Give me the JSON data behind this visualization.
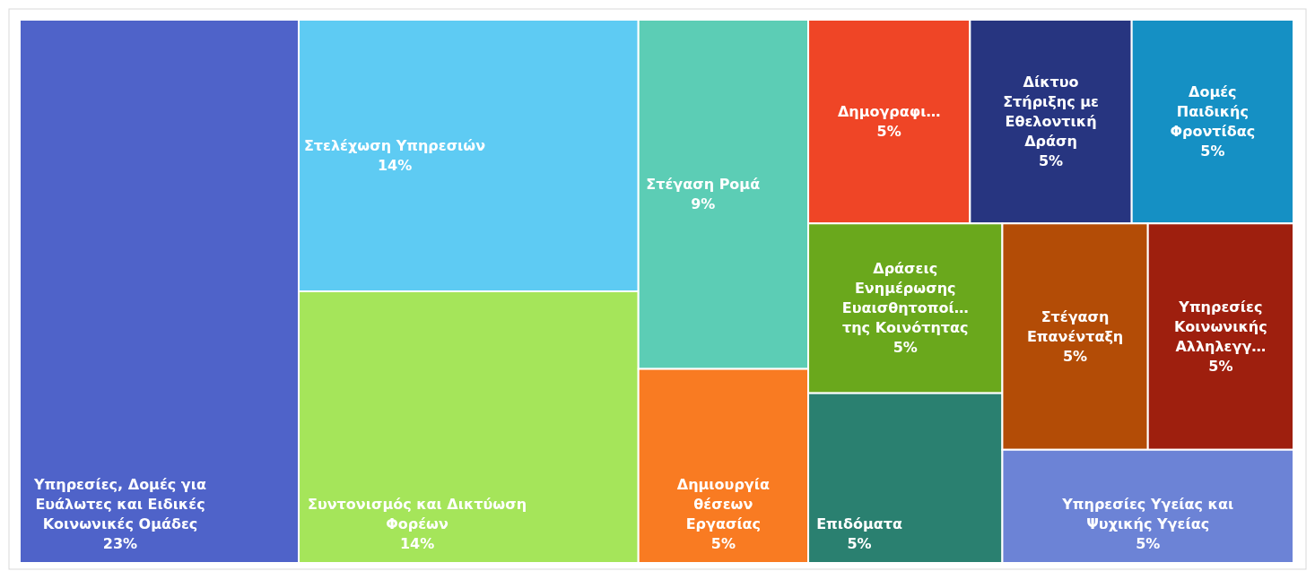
{
  "chart_data": {
    "type": "other",
    "categories": [
      "Υπηρεσίες, Δομές για\nΕυάλωτες και Ειδικές\nΚοινωνικές Ομάδες",
      "Στελέχωση Υπηρεσιών",
      "Συντονισμός και Δικτύωση\nΦορέων",
      "Στέγαση Ρομά",
      "Δημιουργία\nθέσεων\nΕργασίας",
      "Δημογραφι…",
      "Δίκτυο\nΣτήριξης με\nΕθελοντική\nΔράση",
      "Δομές\nΠαιδικής\nΦροντίδας",
      "Δράσεις\nΕνημέρωσης\nΕυαισθητοποί…\nτης Κοινότητας",
      "Επιδόματα",
      "Στέγαση\nΕπανένταξη",
      "Υπηρεσίες\nΚοινωνικής\nΑλληλεγγ…",
      "Υπηρεσίες Υγείας και\nΨυχικής Υγείας"
    ],
    "values": [
      23,
      14,
      14,
      9,
      5,
      5,
      5,
      5,
      5,
      5,
      5,
      5,
      5
    ],
    "value_labels": [
      "23%",
      "14%",
      "14%",
      "9%",
      "5%",
      "5%",
      "5%",
      "5%",
      "5%",
      "5%",
      "5%",
      "5%",
      "5%"
    ],
    "colors": [
      "#4f63c9",
      "#5ecbf3",
      "#a5e55a",
      "#5ccdb5",
      "#f97b22",
      "#ef4526",
      "#273580",
      "#1590c4",
      "#6aa81c",
      "#2a8070",
      "#b34c06",
      "#9e1f0e",
      "#6c83d6"
    ]
  }
}
